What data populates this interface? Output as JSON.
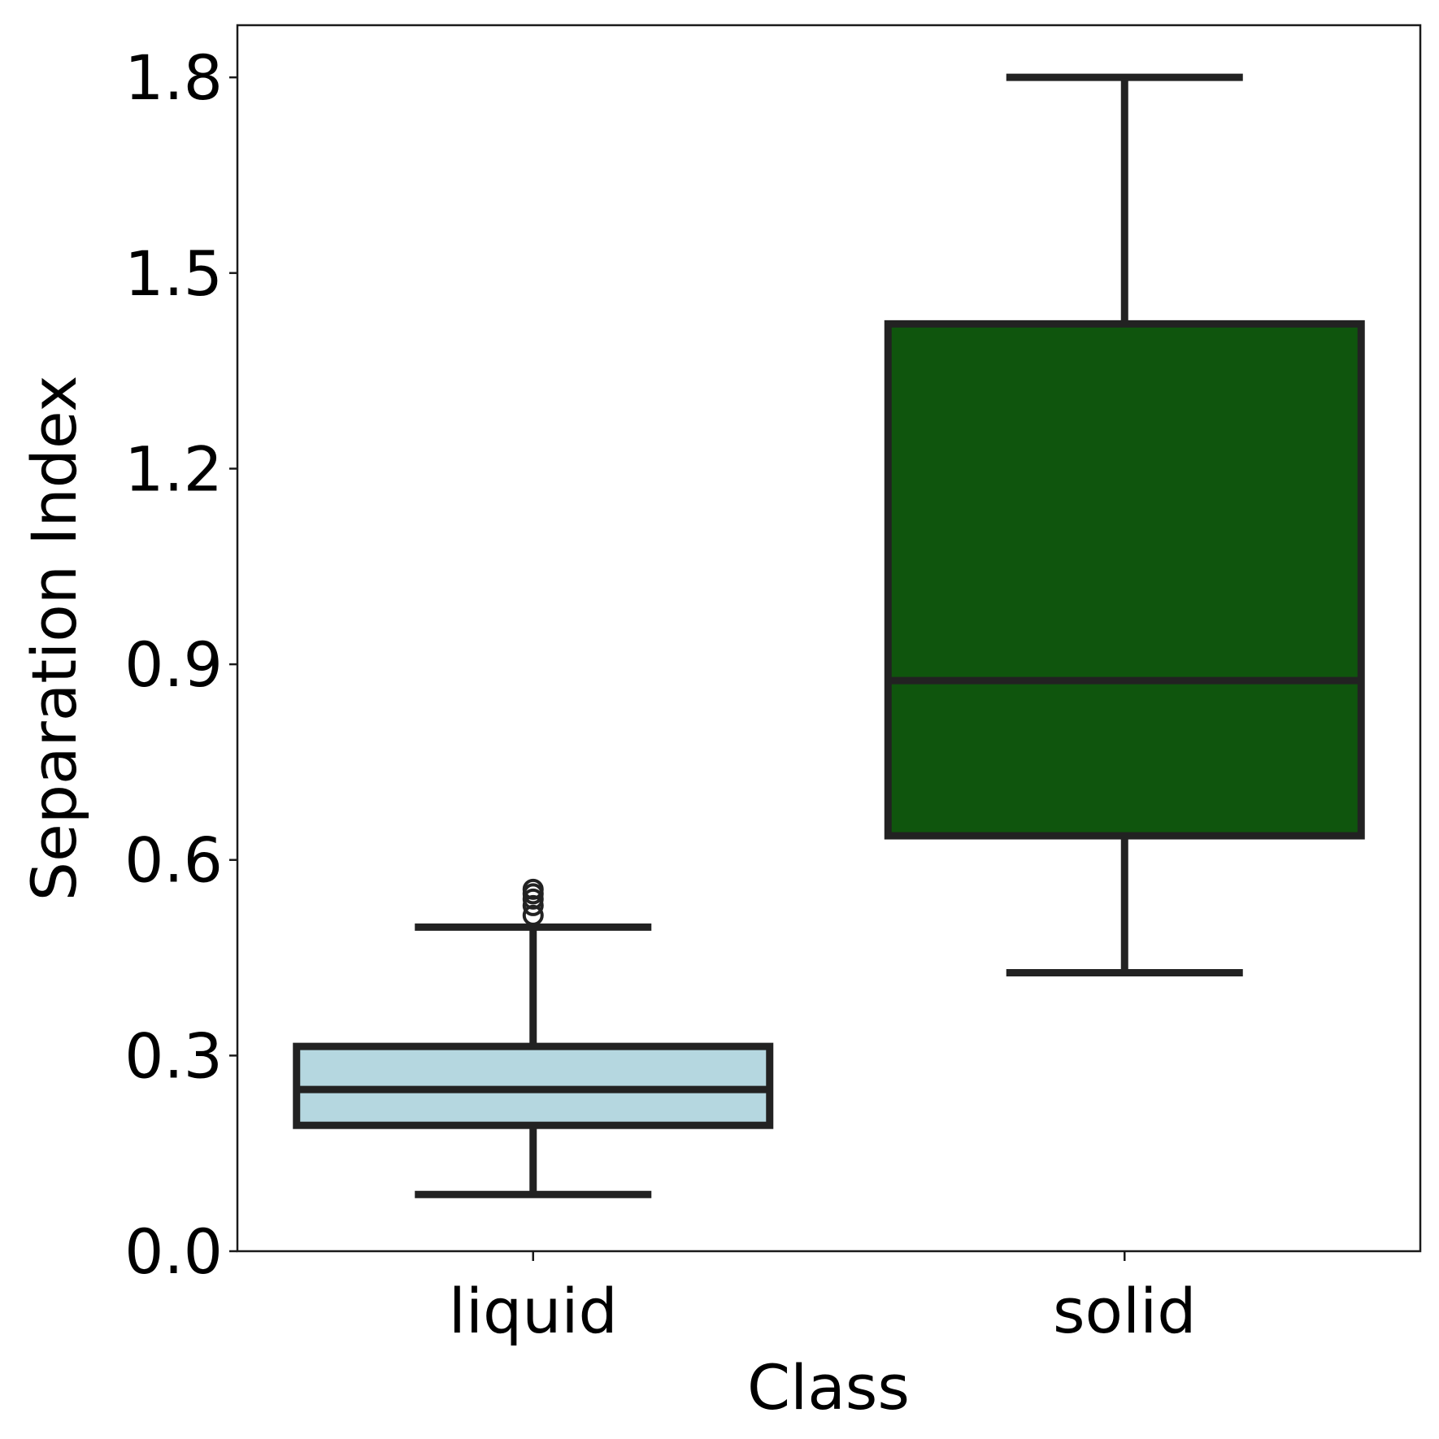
{
  "chart_data": {
    "type": "box",
    "title": "",
    "xlabel": "Class",
    "ylabel": "Separation Index",
    "ylim": [
      0.0,
      1.88
    ],
    "yticks": [
      0.0,
      0.3,
      0.6,
      0.9,
      1.2,
      1.5,
      1.8
    ],
    "ytick_labels": [
      "0.0",
      "0.3",
      "0.6",
      "0.9",
      "1.2",
      "1.5",
      "1.8"
    ],
    "categories": [
      "liquid",
      "solid"
    ],
    "grid": false,
    "boxes": [
      {
        "category": "liquid",
        "whisker_low": 0.087,
        "q1": 0.193,
        "median": 0.248,
        "q3": 0.314,
        "whisker_high": 0.497,
        "outliers": [
          0.515,
          0.53,
          0.54,
          0.548,
          0.555
        ],
        "color": "#b5d7e0"
      },
      {
        "category": "solid",
        "whisker_low": 0.427,
        "q1": 0.637,
        "median": 0.875,
        "q3": 1.422,
        "whisker_high": 1.8,
        "outliers": [],
        "color": "#0f550d"
      }
    ]
  }
}
